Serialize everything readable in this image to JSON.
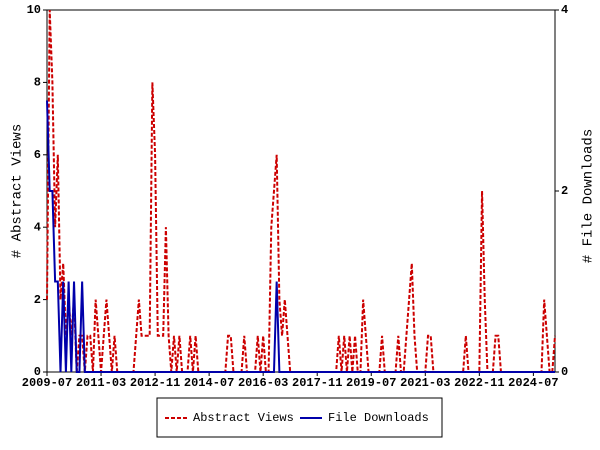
{
  "chart_data": {
    "type": "line",
    "y_label": "# Abstract Views",
    "y2_label": "# File Downloads",
    "categories": [
      "2009-07",
      null,
      null,
      null,
      null,
      null,
      null,
      null,
      null,
      null,
      null,
      null,
      null,
      null,
      null,
      null,
      null,
      null,
      null,
      null,
      "2011-03",
      null,
      null,
      null,
      null,
      null,
      null,
      null,
      null,
      null,
      null,
      null,
      null,
      null,
      null,
      null,
      null,
      null,
      null,
      null,
      "2012-11",
      null,
      null,
      null,
      null,
      null,
      null,
      null,
      null,
      null,
      null,
      null,
      null,
      null,
      null,
      null,
      null,
      null,
      null,
      null,
      "2014-07",
      null,
      null,
      null,
      null,
      null,
      null,
      null,
      null,
      null,
      null,
      null,
      null,
      null,
      null,
      null,
      null,
      null,
      null,
      null,
      "2016-03",
      null,
      null,
      null,
      null,
      null,
      null,
      null,
      null,
      null,
      null,
      null,
      null,
      null,
      null,
      null,
      null,
      null,
      null,
      null,
      "2017-11",
      null,
      null,
      null,
      null,
      null,
      null,
      null,
      null,
      null,
      null,
      null,
      null,
      null,
      null,
      null,
      null,
      null,
      null,
      null,
      "2019-07",
      null,
      null,
      null,
      null,
      null,
      null,
      null,
      null,
      null,
      null,
      null,
      null,
      null,
      null,
      null,
      null,
      null,
      null,
      null,
      "2021-03",
      null,
      null,
      null,
      null,
      null,
      null,
      null,
      null,
      null,
      null,
      null,
      null,
      null,
      null,
      null,
      null,
      null,
      null,
      null,
      "2022-11",
      null,
      null,
      null,
      null,
      null,
      null,
      null,
      null,
      null,
      null,
      null,
      null,
      null,
      null,
      null,
      null,
      null,
      null,
      null,
      "2024-07",
      null,
      null,
      null,
      null,
      null,
      null,
      null,
      null
    ],
    "series": [
      {
        "name": "Abstract Views",
        "color": "#cc0000",
        "dashed": true,
        "values": [
          2,
          10,
          8,
          4,
          6,
          2,
          3,
          1,
          2,
          1,
          2,
          0,
          1,
          1,
          0,
          1,
          1,
          0,
          2,
          1,
          0,
          1,
          2,
          1,
          0,
          1,
          0,
          0,
          0,
          0,
          0,
          0,
          0,
          1,
          2,
          1,
          1,
          1,
          1,
          8,
          6,
          1,
          1,
          1,
          4,
          1,
          0,
          1,
          0,
          1,
          0,
          0,
          0,
          1,
          0,
          1,
          0,
          0,
          0,
          0,
          0,
          0,
          0,
          0,
          0,
          0,
          0,
          1,
          1,
          0,
          0,
          0,
          0,
          1,
          0,
          0,
          0,
          0,
          1,
          0,
          1,
          0,
          0,
          4,
          5,
          6,
          2,
          1,
          2,
          1,
          0,
          0,
          0,
          0,
          0,
          0,
          0,
          0,
          0,
          0,
          0,
          0,
          0,
          0,
          0,
          0,
          0,
          0,
          1,
          0,
          1,
          0,
          1,
          0,
          1,
          0,
          0,
          2,
          1,
          0,
          0,
          0,
          0,
          0,
          1,
          0,
          0,
          0,
          0,
          0,
          1,
          0,
          0,
          1,
          2,
          3,
          1,
          0,
          0,
          0,
          0,
          1,
          1,
          0,
          0,
          0,
          0,
          0,
          0,
          0,
          0,
          0,
          0,
          0,
          0,
          1,
          0,
          0,
          0,
          0,
          0,
          5,
          2,
          0,
          0,
          0,
          1,
          1,
          0,
          0,
          0,
          0,
          0,
          0,
          0,
          0,
          0,
          0,
          0,
          0,
          0,
          0,
          0,
          0,
          2,
          1,
          0,
          0,
          1
        ]
      },
      {
        "name": "File Downloads",
        "color": "#0000aa",
        "axis": "y2",
        "dashed": false,
        "values": [
          3,
          2,
          2,
          1,
          1,
          0,
          1,
          0,
          1,
          0,
          1,
          0,
          0,
          1,
          0,
          0,
          0,
          0,
          0,
          0,
          0,
          0,
          0,
          0,
          0,
          0,
          0,
          0,
          0,
          0,
          0,
          0,
          0,
          0,
          0,
          0,
          0,
          0,
          0,
          0,
          0,
          0,
          0,
          0,
          0,
          0,
          0,
          0,
          0,
          0,
          0,
          0,
          0,
          0,
          0,
          0,
          0,
          0,
          0,
          0,
          0,
          0,
          0,
          0,
          0,
          0,
          0,
          0,
          0,
          0,
          0,
          0,
          0,
          0,
          0,
          0,
          0,
          0,
          0,
          0,
          0,
          0,
          0,
          0,
          0,
          1,
          0,
          0,
          0,
          0,
          0,
          0,
          0,
          0,
          0,
          0,
          0,
          0,
          0,
          0,
          0,
          0,
          0,
          0,
          0,
          0,
          0,
          0,
          0,
          0,
          0,
          0,
          0,
          0,
          0,
          0,
          0,
          0,
          0,
          0,
          0,
          0,
          0,
          0,
          0,
          0,
          0,
          0,
          0,
          0,
          0,
          0,
          0,
          0,
          0,
          0,
          0,
          0,
          0,
          0,
          0,
          0,
          0,
          0,
          0,
          0,
          0,
          0,
          0,
          0,
          0,
          0,
          0,
          0,
          0,
          0,
          0,
          0,
          0,
          0,
          0,
          0,
          0,
          0,
          0,
          0,
          0,
          0,
          0,
          0,
          0,
          0,
          0,
          0,
          0,
          0,
          0,
          0,
          0,
          0,
          0,
          0,
          0,
          0,
          0,
          0,
          0,
          0,
          0
        ]
      }
    ],
    "ylim": [
      0,
      10
    ],
    "yticks": [
      0,
      2,
      4,
      6,
      8,
      10
    ],
    "y2lim": [
      0,
      4
    ],
    "y2ticks": [
      0,
      2,
      4
    ],
    "legend": "bottom"
  }
}
